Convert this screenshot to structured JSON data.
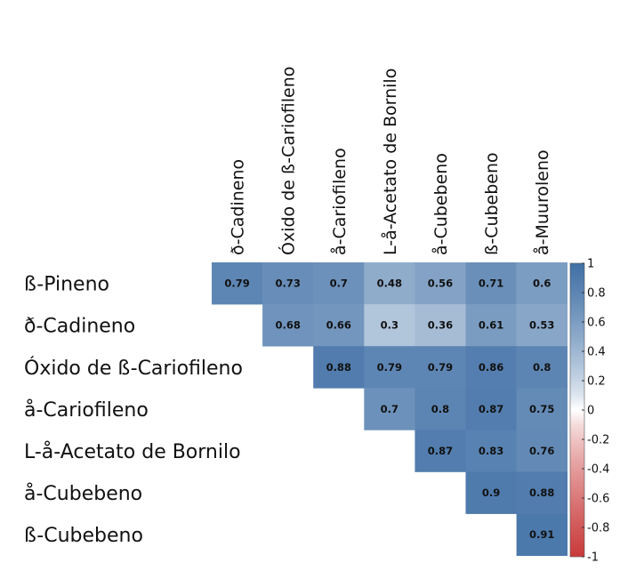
{
  "chart_data": {
    "type": "heatmap",
    "rows": [
      "ß-Pineno",
      "ð-Cadineno",
      "Óxido de ß-Cariofileno",
      "å-Cariofileno",
      "L-å-Acetato de Bornilo",
      "å-Cubebeno",
      "ß-Cubebeno"
    ],
    "columns": [
      "ð-Cadineno",
      "Óxido de ß-Cariofileno",
      "å-Cariofileno",
      "L-å-Acetato de Bornilo",
      "å-Cubebeno",
      "ß-Cubebeno",
      "å-Muuroleno"
    ],
    "values": [
      [
        0.79,
        0.73,
        0.7,
        0.48,
        0.56,
        0.71,
        0.6
      ],
      [
        null,
        0.68,
        0.66,
        0.3,
        0.36,
        0.61,
        0.53
      ],
      [
        null,
        null,
        0.88,
        0.79,
        0.79,
        0.86,
        0.8
      ],
      [
        null,
        null,
        null,
        0.7,
        0.8,
        0.87,
        0.75
      ],
      [
        null,
        null,
        null,
        null,
        0.87,
        0.83,
        0.76
      ],
      [
        null,
        null,
        null,
        null,
        null,
        0.9,
        0.88
      ],
      [
        null,
        null,
        null,
        null,
        null,
        null,
        0.91
      ]
    ],
    "value_range": [
      -1,
      1
    ],
    "legend": {
      "position": "right",
      "ticks": [
        "1",
        "0.8",
        "0.6",
        "0.4",
        "0.2",
        "0",
        "-0.2",
        "-0.4",
        "-0.6",
        "-0.8",
        "-1"
      ],
      "colors": {
        "high": "#3f6fa5",
        "mid": "#ffffff",
        "low": "#c93a3a"
      }
    },
    "grid": false
  }
}
